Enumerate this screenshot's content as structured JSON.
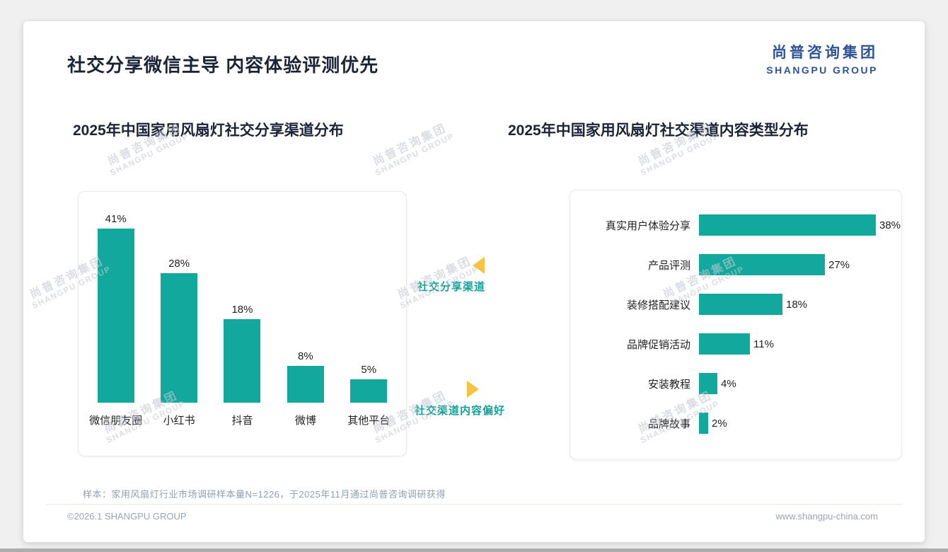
{
  "page": {
    "title": "社交分享微信主导 内容体验评测优先",
    "logo": {
      "cn": "尚普咨询集团",
      "en": "SHANGPU GROUP"
    },
    "watermark": {
      "line1": "尚普咨询集团",
      "line2": "SHANGPU GROUP"
    },
    "note": "样本：家用风扇灯行业市场调研样本量N=1226，于2025年11月通过尚普咨询调研获得",
    "footer": {
      "copyright": "©2026.1 SHANGPU GROUP",
      "website": "www.shangpu-china.com"
    }
  },
  "annotations": {
    "share_channel": "社交分享渠道",
    "content_preference": "社交渠道内容偏好"
  },
  "colors": {
    "bar_teal": "#13A89E",
    "annotation_teal": "#0FA39A",
    "marker_gold": "#F8C243",
    "logo_blue": "#2D5496",
    "title_dark": "#1B2437"
  },
  "chart_data": [
    {
      "type": "bar",
      "orientation": "vertical",
      "title": "2025年中国家用风扇灯社交分享渠道分布",
      "categories": [
        "微信朋友圈",
        "小红书",
        "抖音",
        "微博",
        "其他平台"
      ],
      "values": [
        41,
        28,
        18,
        8,
        5
      ],
      "unit": "%",
      "ylim": [
        0,
        45
      ],
      "grid": false,
      "legend": false,
      "bar_color": "#13A89E"
    },
    {
      "type": "bar",
      "orientation": "horizontal",
      "title": "2025年中国家用风扇灯社交渠道内容类型分布",
      "categories": [
        "真实用户体验分享",
        "产品评测",
        "装修搭配建议",
        "品牌促销活动",
        "安装教程",
        "品牌故事"
      ],
      "values": [
        38,
        27,
        18,
        11,
        4,
        2
      ],
      "unit": "%",
      "xlim": [
        0,
        42
      ],
      "grid": false,
      "legend": false,
      "bar_color": "#13A89E"
    }
  ]
}
